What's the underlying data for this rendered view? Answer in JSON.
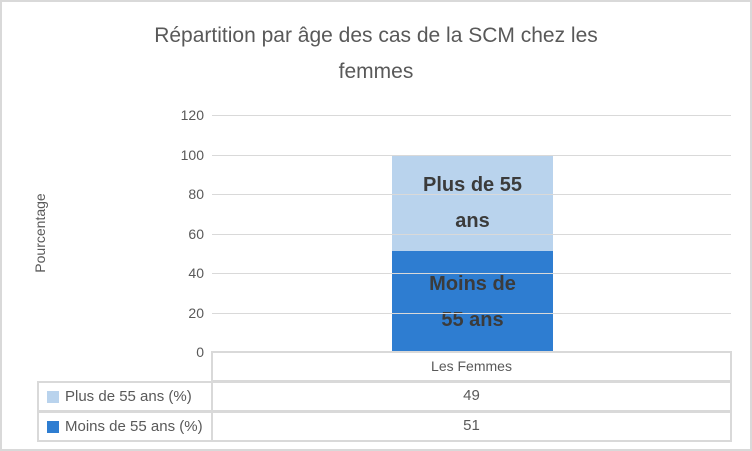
{
  "chart_data": {
    "type": "bar",
    "stacked": true,
    "title": "Répartition par âge des cas de la SCM chez les femmes",
    "title_lines": [
      "Répartition par âge des cas de la SCM chez les",
      "femmes"
    ],
    "ylabel": "Pourcentage",
    "xlabel": "",
    "ylim": [
      0,
      120
    ],
    "yticks": [
      0,
      20,
      40,
      60,
      80,
      100,
      120
    ],
    "grid": "horizontal",
    "legend_position": "bottom-data-table",
    "categories": [
      "Les Femmes"
    ],
    "series": [
      {
        "name": "Plus de 55 ans (%)",
        "bar_label_lines": [
          "Plus de 55",
          "ans"
        ],
        "values": [
          49
        ],
        "color": "#b9d3ed"
      },
      {
        "name": "Moins de 55 ans (%)",
        "bar_label_lines": [
          "Moins de",
          "55 ans"
        ],
        "values": [
          51
        ],
        "color": "#2e7dd1"
      }
    ],
    "colors": {
      "gridline": "#d9d9d9",
      "table_border": "#d9d9d9",
      "axis_text": "#595959",
      "bar_label_text": "#3b3b3b"
    }
  }
}
